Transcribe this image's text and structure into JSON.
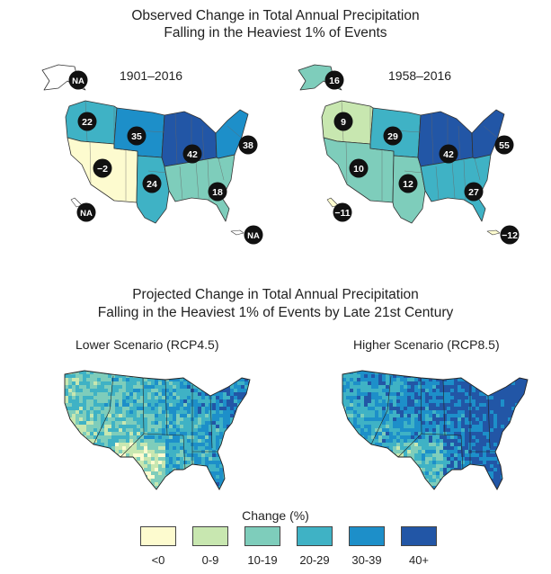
{
  "observed": {
    "title_line1": "Observed Change in Total Annual Precipitation",
    "title_line2": "Falling in the Heaviest 1% of Events",
    "maps": [
      {
        "period": "1901–2016",
        "regions": {
          "northwest": {
            "value": "22",
            "class": "20-29"
          },
          "southwest": {
            "value": "−2",
            "class": "<0"
          },
          "great_plains_north": {
            "value": "35",
            "class": "30-39"
          },
          "great_plains_south": {
            "value": "24",
            "class": "20-29"
          },
          "midwest": {
            "value": "42",
            "class": "40+"
          },
          "northeast": {
            "value": "38",
            "class": "30-39"
          },
          "southeast": {
            "value": "18",
            "class": "10-19"
          },
          "alaska": {
            "value": "NA",
            "class": "none"
          },
          "hawaii": {
            "value": "NA",
            "class": "none"
          },
          "caribbean": {
            "value": "NA",
            "class": "none"
          }
        }
      },
      {
        "period": "1958–2016",
        "regions": {
          "northwest": {
            "value": "9",
            "class": "0-9"
          },
          "southwest": {
            "value": "10",
            "class": "10-19"
          },
          "great_plains_north": {
            "value": "29",
            "class": "20-29"
          },
          "great_plains_south": {
            "value": "12",
            "class": "10-19"
          },
          "midwest": {
            "value": "42",
            "class": "40+"
          },
          "northeast": {
            "value": "55",
            "class": "40+"
          },
          "southeast": {
            "value": "27",
            "class": "20-29"
          },
          "alaska": {
            "value": "16",
            "class": "10-19"
          },
          "hawaii": {
            "value": "−11",
            "class": "<0"
          },
          "caribbean": {
            "value": "−12",
            "class": "<0"
          }
        }
      }
    ]
  },
  "projected": {
    "title_line1": "Projected Change in Total Annual Precipitation",
    "title_line2": "Falling in the Heaviest 1% of Events by Late 21st Century",
    "scenarios": [
      {
        "label": "Lower Scenario (RCP4.5)"
      },
      {
        "label": "Higher Scenario (RCP8.5)"
      }
    ]
  },
  "legend": {
    "title": "Change (%)",
    "bins": [
      {
        "label": "<0",
        "color": "#fdfbcf"
      },
      {
        "label": "0-9",
        "color": "#c8e7b0"
      },
      {
        "label": "10-19",
        "color": "#7ecdbb"
      },
      {
        "label": "20-29",
        "color": "#3fb2c5"
      },
      {
        "label": "30-39",
        "color": "#1d8fc9"
      },
      {
        "label": "40+",
        "color": "#2256a6"
      }
    ]
  }
}
